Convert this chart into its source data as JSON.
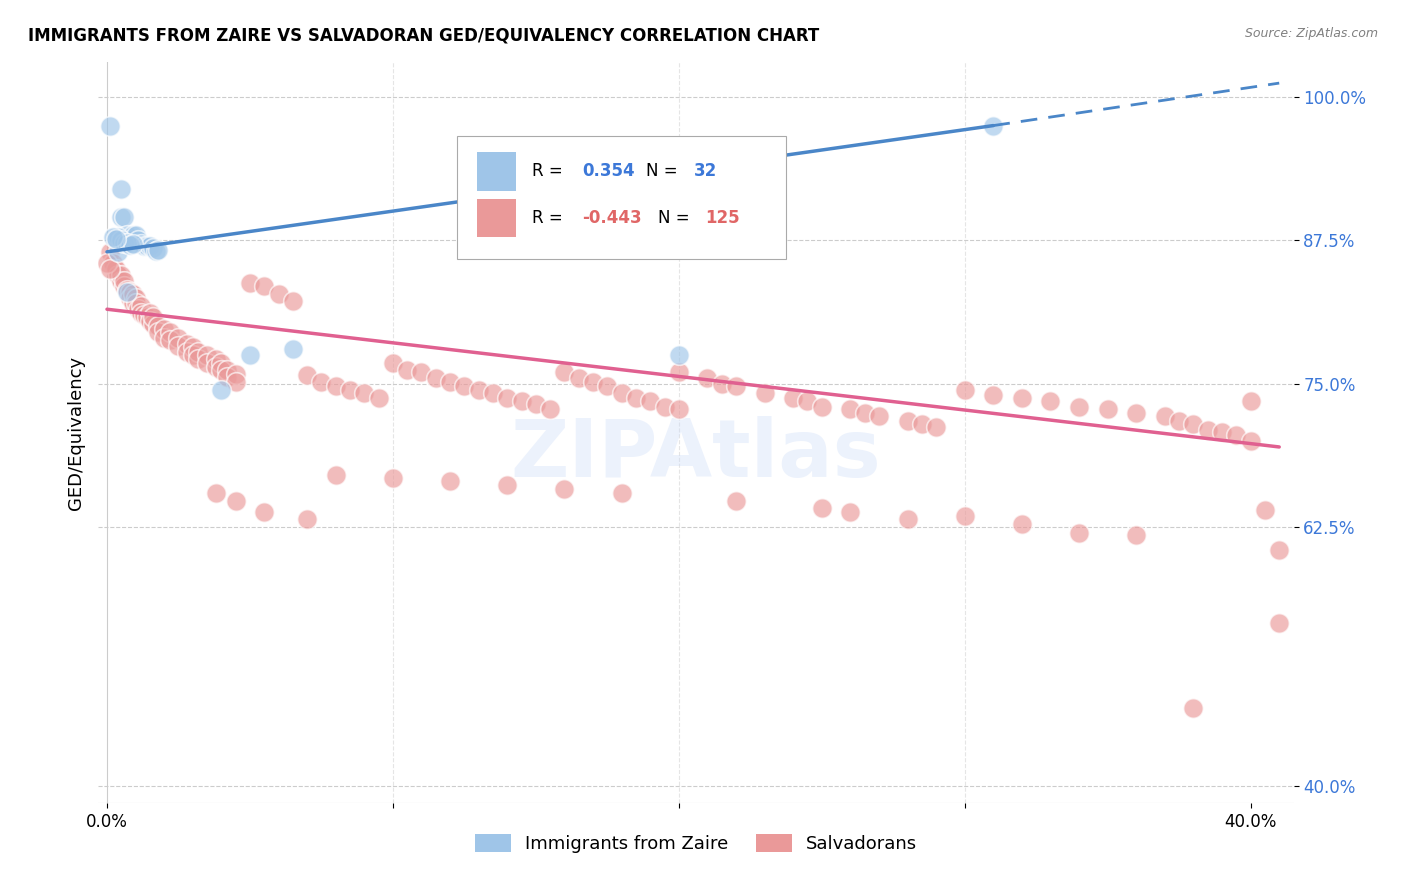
{
  "title": "IMMIGRANTS FROM ZAIRE VS SALVADORAN GED/EQUIVALENCY CORRELATION CHART",
  "source": "Source: ZipAtlas.com",
  "ylabel": "GED/Equivalency",
  "ylim": [
    0.385,
    1.03
  ],
  "xlim": [
    -0.003,
    0.415
  ],
  "yticks": [
    0.4,
    0.625,
    0.75,
    0.875,
    1.0
  ],
  "ytick_labels": [
    "40.0%",
    "62.5%",
    "75.0%",
    "87.5%",
    "100.0%"
  ],
  "xtick_positions": [
    0.0,
    0.1,
    0.2,
    0.3,
    0.4
  ],
  "xtick_labels": [
    "0.0%",
    "",
    "",
    "",
    "40.0%"
  ],
  "blue_color": "#9fc5e8",
  "pink_color": "#ea9999",
  "blue_line_color": "#4a86c8",
  "pink_line_color": "#e06090",
  "watermark": "ZIPAtlas",
  "background_color": "#ffffff",
  "blue_line_x0": 0.0,
  "blue_line_y0": 0.865,
  "blue_line_x1": 0.31,
  "blue_line_y1": 0.975,
  "blue_line_dash_x1": 0.41,
  "blue_line_dash_y1": 1.012,
  "pink_line_x0": 0.0,
  "pink_line_y0": 0.815,
  "pink_line_x1": 0.41,
  "pink_line_y1": 0.695,
  "blue_points": [
    [
      0.001,
      0.975
    ],
    [
      0.005,
      0.92
    ],
    [
      0.004,
      0.865
    ],
    [
      0.005,
      0.895
    ],
    [
      0.006,
      0.895
    ],
    [
      0.007,
      0.88
    ],
    [
      0.008,
      0.875
    ],
    [
      0.009,
      0.88
    ],
    [
      0.01,
      0.88
    ],
    [
      0.011,
      0.875
    ],
    [
      0.012,
      0.872
    ],
    [
      0.013,
      0.87
    ],
    [
      0.014,
      0.87
    ],
    [
      0.015,
      0.87
    ],
    [
      0.016,
      0.868
    ],
    [
      0.017,
      0.866
    ],
    [
      0.018,
      0.867
    ],
    [
      0.003,
      0.877
    ],
    [
      0.004,
      0.878
    ],
    [
      0.005,
      0.875
    ],
    [
      0.006,
      0.873
    ],
    [
      0.007,
      0.873
    ],
    [
      0.008,
      0.871
    ],
    [
      0.009,
      0.872
    ],
    [
      0.002,
      0.878
    ],
    [
      0.003,
      0.876
    ],
    [
      0.05,
      0.775
    ],
    [
      0.065,
      0.78
    ],
    [
      0.2,
      0.775
    ],
    [
      0.31,
      0.975
    ],
    [
      0.04,
      0.745
    ],
    [
      0.007,
      0.83
    ]
  ],
  "pink_points": [
    [
      0.001,
      0.865
    ],
    [
      0.002,
      0.855
    ],
    [
      0.003,
      0.85
    ],
    [
      0.004,
      0.845
    ],
    [
      0.005,
      0.84
    ],
    [
      0.005,
      0.845
    ],
    [
      0.006,
      0.835
    ],
    [
      0.006,
      0.84
    ],
    [
      0.007,
      0.832
    ],
    [
      0.008,
      0.83
    ],
    [
      0.008,
      0.825
    ],
    [
      0.009,
      0.82
    ],
    [
      0.009,
      0.828
    ],
    [
      0.01,
      0.825
    ],
    [
      0.01,
      0.82
    ],
    [
      0.011,
      0.815
    ],
    [
      0.012,
      0.818
    ],
    [
      0.012,
      0.812
    ],
    [
      0.013,
      0.81
    ],
    [
      0.014,
      0.808
    ],
    [
      0.015,
      0.812
    ],
    [
      0.015,
      0.805
    ],
    [
      0.016,
      0.802
    ],
    [
      0.016,
      0.808
    ],
    [
      0.018,
      0.8
    ],
    [
      0.018,
      0.795
    ],
    [
      0.02,
      0.798
    ],
    [
      0.02,
      0.79
    ],
    [
      0.022,
      0.795
    ],
    [
      0.022,
      0.788
    ],
    [
      0.025,
      0.79
    ],
    [
      0.025,
      0.783
    ],
    [
      0.028,
      0.785
    ],
    [
      0.028,
      0.778
    ],
    [
      0.03,
      0.782
    ],
    [
      0.03,
      0.775
    ],
    [
      0.032,
      0.778
    ],
    [
      0.032,
      0.772
    ],
    [
      0.035,
      0.775
    ],
    [
      0.035,
      0.768
    ],
    [
      0.038,
      0.772
    ],
    [
      0.038,
      0.765
    ],
    [
      0.04,
      0.768
    ],
    [
      0.04,
      0.762
    ],
    [
      0.042,
      0.762
    ],
    [
      0.042,
      0.756
    ],
    [
      0.045,
      0.759
    ],
    [
      0.045,
      0.752
    ],
    [
      0.05,
      0.838
    ],
    [
      0.055,
      0.835
    ],
    [
      0.06,
      0.828
    ],
    [
      0.065,
      0.822
    ],
    [
      0.07,
      0.758
    ],
    [
      0.075,
      0.752
    ],
    [
      0.08,
      0.748
    ],
    [
      0.085,
      0.745
    ],
    [
      0.09,
      0.742
    ],
    [
      0.095,
      0.738
    ],
    [
      0.1,
      0.768
    ],
    [
      0.105,
      0.762
    ],
    [
      0.11,
      0.76
    ],
    [
      0.115,
      0.755
    ],
    [
      0.12,
      0.752
    ],
    [
      0.125,
      0.748
    ],
    [
      0.13,
      0.745
    ],
    [
      0.135,
      0.742
    ],
    [
      0.14,
      0.738
    ],
    [
      0.145,
      0.735
    ],
    [
      0.15,
      0.732
    ],
    [
      0.155,
      0.728
    ],
    [
      0.16,
      0.76
    ],
    [
      0.165,
      0.755
    ],
    [
      0.17,
      0.752
    ],
    [
      0.175,
      0.748
    ],
    [
      0.18,
      0.742
    ],
    [
      0.185,
      0.738
    ],
    [
      0.19,
      0.735
    ],
    [
      0.195,
      0.73
    ],
    [
      0.2,
      0.728
    ],
    [
      0.2,
      0.76
    ],
    [
      0.21,
      0.755
    ],
    [
      0.215,
      0.75
    ],
    [
      0.22,
      0.748
    ],
    [
      0.23,
      0.742
    ],
    [
      0.24,
      0.738
    ],
    [
      0.245,
      0.735
    ],
    [
      0.25,
      0.73
    ],
    [
      0.26,
      0.728
    ],
    [
      0.265,
      0.725
    ],
    [
      0.27,
      0.722
    ],
    [
      0.28,
      0.718
    ],
    [
      0.285,
      0.715
    ],
    [
      0.29,
      0.712
    ],
    [
      0.3,
      0.745
    ],
    [
      0.31,
      0.74
    ],
    [
      0.32,
      0.738
    ],
    [
      0.33,
      0.735
    ],
    [
      0.34,
      0.73
    ],
    [
      0.35,
      0.728
    ],
    [
      0.36,
      0.725
    ],
    [
      0.37,
      0.722
    ],
    [
      0.375,
      0.718
    ],
    [
      0.38,
      0.715
    ],
    [
      0.385,
      0.71
    ],
    [
      0.39,
      0.708
    ],
    [
      0.395,
      0.705
    ],
    [
      0.4,
      0.7
    ],
    [
      0.4,
      0.735
    ],
    [
      0.405,
      0.64
    ],
    [
      0.41,
      0.605
    ],
    [
      0.3,
      0.635
    ],
    [
      0.32,
      0.628
    ],
    [
      0.34,
      0.62
    ],
    [
      0.36,
      0.618
    ],
    [
      0.26,
      0.638
    ],
    [
      0.28,
      0.632
    ],
    [
      0.25,
      0.642
    ],
    [
      0.22,
      0.648
    ],
    [
      0.18,
      0.655
    ],
    [
      0.16,
      0.658
    ],
    [
      0.14,
      0.662
    ],
    [
      0.12,
      0.665
    ],
    [
      0.1,
      0.668
    ],
    [
      0.08,
      0.671
    ],
    [
      0.07,
      0.632
    ],
    [
      0.055,
      0.638
    ],
    [
      0.045,
      0.648
    ],
    [
      0.038,
      0.655
    ],
    [
      0.0,
      0.855
    ],
    [
      0.001,
      0.85
    ],
    [
      0.38,
      0.468
    ],
    [
      0.41,
      0.542
    ]
  ]
}
